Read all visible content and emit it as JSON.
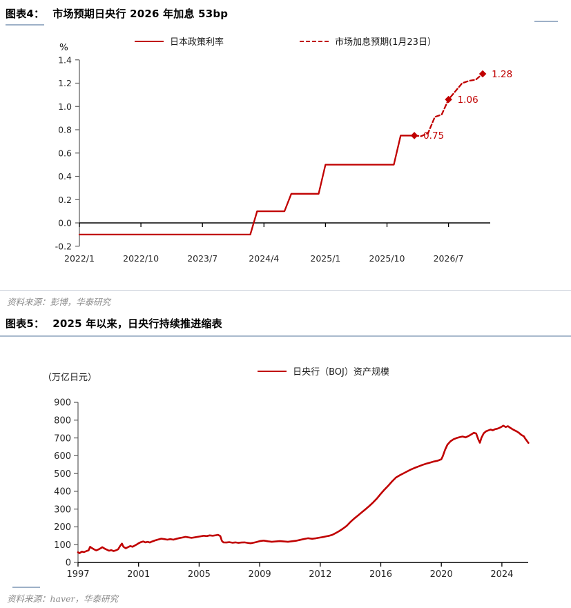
{
  "colors": {
    "accent_red": "#c00000",
    "axis_black": "#000000",
    "axis_gray": "#595959",
    "tick_text": "#262626",
    "rule_blue": "#9db0c7",
    "divider_gray": "#c6ccd6",
    "source_gray": "#8a8a8a"
  },
  "fig4": {
    "tag": "图表4：",
    "title": "市场预期日央行 2026 年加息 53bp",
    "unit": "%",
    "source": "资料来源：彭博，华泰研究"
  },
  "fig5": {
    "tag": "图表5：",
    "title": "2025 年以来，日央行持续推进缩表",
    "unit": "（万亿日元）",
    "source": "资料来源：haver，华泰研究"
  },
  "chart_data": [
    {
      "type": "line",
      "title": "市场预期日央行 2026 年加息 53bp",
      "ylabel": "%",
      "ylim": [
        -0.2,
        1.4
      ],
      "y_ticks": [
        1.4,
        1.2,
        1.0,
        0.8,
        0.6,
        0.4,
        0.2,
        0.0,
        -0.2
      ],
      "x_ticks": [
        "2022/1",
        "2022/10",
        "2023/7",
        "2024/4",
        "2025/1",
        "2025/10",
        "2026/7"
      ],
      "grid": false,
      "legend_position": "top",
      "series": [
        {
          "name": "日本政策利率",
          "style": "solid",
          "color": "#c00000",
          "points": [
            [
              "2022/1",
              -0.1
            ],
            [
              "2024/2",
              -0.1
            ],
            [
              "2024/3",
              0.1
            ],
            [
              "2024/7",
              0.1
            ],
            [
              "2024/8",
              0.25
            ],
            [
              "2024/12",
              0.25
            ],
            [
              "2025/1",
              0.5
            ],
            [
              "2025/11",
              0.5
            ],
            [
              "2025/12",
              0.75
            ],
            [
              "2026/2",
              0.75
            ]
          ]
        },
        {
          "name": "市场加息预期(1月23日）",
          "style": "dashed",
          "color": "#c00000",
          "points": [
            [
              "2026/2",
              0.75
            ],
            [
              "2026/3",
              0.745
            ],
            [
              "2026/4",
              0.77
            ],
            [
              "2026/5",
              0.91
            ],
            [
              "2026/6",
              0.93
            ],
            [
              "2026/7",
              1.06
            ],
            [
              "2026/8",
              1.13
            ],
            [
              "2026/9",
              1.2
            ],
            [
              "2026/10",
              1.22
            ],
            [
              "2026/11",
              1.23
            ],
            [
              "2026/12",
              1.28
            ]
          ]
        }
      ],
      "markers": [
        {
          "x": "2026/2",
          "value": 0.75,
          "label": "0.75"
        },
        {
          "x": "2026/7",
          "value": 1.06,
          "label": "1.06"
        },
        {
          "x": "2026/12",
          "value": 1.28,
          "label": "1.28"
        }
      ]
    },
    {
      "type": "line",
      "title": "2025 年以来，日央行持续推进缩表",
      "ylabel": "（万亿日元）",
      "ylim": [
        0,
        900
      ],
      "y_ticks": [
        900,
        800,
        700,
        600,
        500,
        400,
        300,
        200,
        100,
        0
      ],
      "x_ticks": [
        1997,
        2001,
        2005,
        2009,
        2012,
        2016,
        2020,
        2024
      ],
      "grid": false,
      "legend_position": "top",
      "series": [
        {
          "name": "日央行（BOJ）资产规模",
          "style": "solid",
          "color": "#c00000",
          "points": [
            [
              1997.0,
              57
            ],
            [
              1997.1,
              52
            ],
            [
              1997.25,
              61
            ],
            [
              1997.4,
              58
            ],
            [
              1997.55,
              64
            ],
            [
              1997.7,
              68
            ],
            [
              1997.8,
              88
            ],
            [
              1997.9,
              82
            ],
            [
              1998.05,
              74
            ],
            [
              1998.2,
              68
            ],
            [
              1998.35,
              73
            ],
            [
              1998.5,
              80
            ],
            [
              1998.6,
              86
            ],
            [
              1998.75,
              78
            ],
            [
              1998.9,
              72
            ],
            [
              1999.05,
              66
            ],
            [
              1999.2,
              69
            ],
            [
              1999.35,
              64
            ],
            [
              1999.5,
              68
            ],
            [
              1999.65,
              74
            ],
            [
              1999.8,
              95
            ],
            [
              1999.9,
              106
            ],
            [
              2000.0,
              88
            ],
            [
              2000.15,
              80
            ],
            [
              2000.3,
              86
            ],
            [
              2000.45,
              92
            ],
            [
              2000.6,
              88
            ],
            [
              2000.75,
              95
            ],
            [
              2000.9,
              102
            ],
            [
              2001.0,
              108
            ],
            [
              2001.15,
              114
            ],
            [
              2001.3,
              118
            ],
            [
              2001.45,
              113
            ],
            [
              2001.6,
              116
            ],
            [
              2001.75,
              112
            ],
            [
              2001.9,
              118
            ],
            [
              2002.1,
              124
            ],
            [
              2002.3,
              129
            ],
            [
              2002.5,
              134
            ],
            [
              2002.7,
              131
            ],
            [
              2002.9,
              128
            ],
            [
              2003.1,
              131
            ],
            [
              2003.3,
              128
            ],
            [
              2003.5,
              133
            ],
            [
              2003.7,
              137
            ],
            [
              2003.9,
              140
            ],
            [
              2004.1,
              144
            ],
            [
              2004.3,
              141
            ],
            [
              2004.5,
              138
            ],
            [
              2004.7,
              141
            ],
            [
              2004.9,
              144
            ],
            [
              2005.1,
              147
            ],
            [
              2005.3,
              150
            ],
            [
              2005.5,
              148
            ],
            [
              2005.7,
              152
            ],
            [
              2005.9,
              150
            ],
            [
              2006.1,
              153
            ],
            [
              2006.25,
              155
            ],
            [
              2006.4,
              148
            ],
            [
              2006.5,
              122
            ],
            [
              2006.6,
              113
            ],
            [
              2006.8,
              112
            ],
            [
              2007.0,
              114
            ],
            [
              2007.2,
              111
            ],
            [
              2007.4,
              113
            ],
            [
              2007.6,
              110
            ],
            [
              2007.8,
              112
            ],
            [
              2008.0,
              113
            ],
            [
              2008.2,
              110
            ],
            [
              2008.4,
              108
            ],
            [
              2008.6,
              111
            ],
            [
              2008.8,
              115
            ],
            [
              2009.0,
              120
            ],
            [
              2009.2,
              123
            ],
            [
              2009.4,
              119
            ],
            [
              2009.6,
              116
            ],
            [
              2009.8,
              118
            ],
            [
              2010.0,
              120
            ],
            [
              2010.2,
              118
            ],
            [
              2010.4,
              116
            ],
            [
              2010.6,
              119
            ],
            [
              2010.8,
              122
            ],
            [
              2011.0,
              127
            ],
            [
              2011.2,
              132
            ],
            [
              2011.4,
              136
            ],
            [
              2011.6,
              133
            ],
            [
              2011.8,
              136
            ],
            [
              2012.0,
              140
            ],
            [
              2012.2,
              143
            ],
            [
              2012.4,
              147
            ],
            [
              2012.6,
              150
            ],
            [
              2012.8,
              155
            ],
            [
              2013.0,
              164
            ],
            [
              2013.25,
              176
            ],
            [
              2013.5,
              190
            ],
            [
              2013.75,
              206
            ],
            [
              2014.0,
              228
            ],
            [
              2014.25,
              247
            ],
            [
              2014.5,
              264
            ],
            [
              2014.75,
              282
            ],
            [
              2015.0,
              300
            ],
            [
              2015.25,
              318
            ],
            [
              2015.5,
              338
            ],
            [
              2015.75,
              360
            ],
            [
              2016.0,
              386
            ],
            [
              2016.25,
              410
            ],
            [
              2016.5,
              432
            ],
            [
              2016.75,
              456
            ],
            [
              2017.0,
              477
            ],
            [
              2017.25,
              490
            ],
            [
              2017.5,
              501
            ],
            [
              2017.75,
              512
            ],
            [
              2018.0,
              523
            ],
            [
              2018.25,
              532
            ],
            [
              2018.5,
              540
            ],
            [
              2018.75,
              548
            ],
            [
              2019.0,
              555
            ],
            [
              2019.25,
              561
            ],
            [
              2019.5,
              567
            ],
            [
              2019.75,
              572
            ],
            [
              2020.0,
              580
            ],
            [
              2020.1,
              598
            ],
            [
              2020.25,
              634
            ],
            [
              2020.4,
              662
            ],
            [
              2020.6,
              681
            ],
            [
              2020.8,
              692
            ],
            [
              2021.0,
              699
            ],
            [
              2021.2,
              704
            ],
            [
              2021.4,
              708
            ],
            [
              2021.6,
              703
            ],
            [
              2021.8,
              711
            ],
            [
              2022.0,
              721
            ],
            [
              2022.15,
              729
            ],
            [
              2022.3,
              725
            ],
            [
              2022.45,
              690
            ],
            [
              2022.55,
              673
            ],
            [
              2022.65,
              701
            ],
            [
              2022.8,
              726
            ],
            [
              2022.95,
              737
            ],
            [
              2023.1,
              742
            ],
            [
              2023.25,
              747
            ],
            [
              2023.4,
              743
            ],
            [
              2023.55,
              749
            ],
            [
              2023.7,
              752
            ],
            [
              2023.85,
              757
            ],
            [
              2024.0,
              764
            ],
            [
              2024.1,
              769
            ],
            [
              2024.25,
              761
            ],
            [
              2024.4,
              766
            ],
            [
              2024.55,
              757
            ],
            [
              2024.7,
              749
            ],
            [
              2024.85,
              742
            ],
            [
              2025.0,
              736
            ],
            [
              2025.15,
              727
            ],
            [
              2025.3,
              716
            ],
            [
              2025.45,
              709
            ],
            [
              2025.55,
              695
            ],
            [
              2025.65,
              684
            ],
            [
              2025.75,
              672
            ]
          ]
        }
      ]
    }
  ]
}
